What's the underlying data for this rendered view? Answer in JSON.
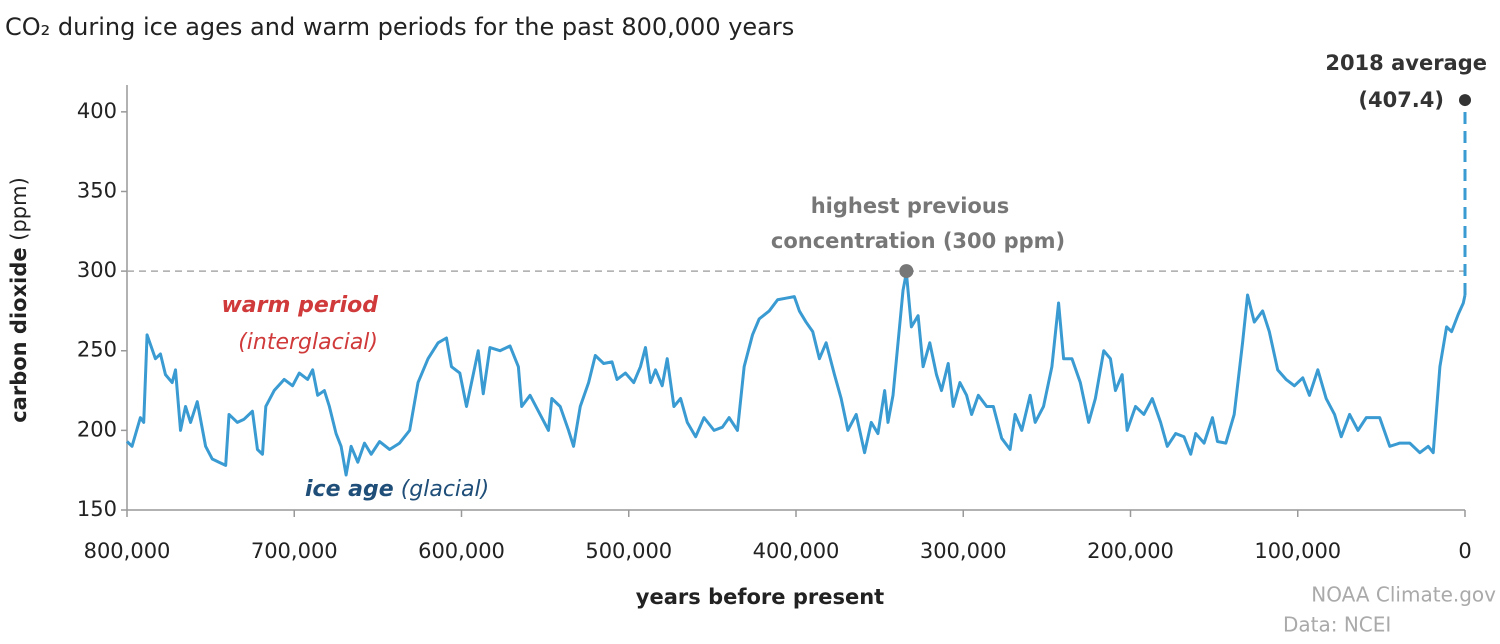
{
  "chart_data": {
    "type": "line",
    "title": "CO₂ during ice ages and warm periods for the past 800,000 years",
    "xlabel": "years before present",
    "ylabel": "carbon dioxide",
    "ylabel_unit": "(ppm)",
    "color": "#3a9bd2",
    "xlim": [
      800000,
      0
    ],
    "ylim": [
      150,
      420
    ],
    "xticks": [
      {
        "value": 800000,
        "label": "800,000"
      },
      {
        "value": 700000,
        "label": "700,000"
      },
      {
        "value": 600000,
        "label": "600,000"
      },
      {
        "value": 500000,
        "label": "500,000"
      },
      {
        "value": 400000,
        "label": "400,000"
      },
      {
        "value": 300000,
        "label": "300,000"
      },
      {
        "value": 200000,
        "label": "200,000"
      },
      {
        "value": 100000,
        "label": "100,000"
      },
      0
    ],
    "yticks": [
      150,
      200,
      250,
      300,
      350,
      400
    ],
    "reference_line": 300,
    "x": [
      800000,
      797000,
      792000,
      790000,
      788000,
      783000,
      780000,
      777000,
      773000,
      771000,
      768000,
      765000,
      762000,
      758000,
      753000,
      749000,
      745000,
      741000,
      739000,
      734000,
      730000,
      725000,
      722000,
      719000,
      717000,
      712000,
      706000,
      701000,
      697000,
      692000,
      689000,
      686000,
      682000,
      679000,
      675000,
      672000,
      669000,
      666000,
      662000,
      658000,
      654000,
      649000,
      643000,
      637000,
      631000,
      626000,
      620000,
      614000,
      609000,
      606000,
      601000,
      597000,
      594000,
      590000,
      587000,
      583000,
      577000,
      571000,
      566000,
      564000,
      559000,
      553000,
      548000,
      546000,
      541000,
      536000,
      533000,
      529000,
      524000,
      520000,
      515000,
      510000,
      507000,
      502000,
      497000,
      493000,
      490000,
      487000,
      484000,
      480000,
      477000,
      473000,
      469000,
      465000,
      460000,
      455000,
      449000,
      444000,
      440000,
      435000,
      431000,
      426000,
      422000,
      416000,
      411000,
      406000,
      401000,
      398000,
      394000,
      390000,
      386000,
      382000,
      377000,
      373000,
      369000,
      364000,
      359000,
      355000,
      351000,
      347000,
      345000,
      342000,
      339000,
      336000,
      334000,
      331000,
      327000,
      324000,
      320000,
      316000,
      313000,
      309000,
      306000,
      302000,
      298000,
      295000,
      291000,
      286000,
      282000,
      277000,
      272000,
      269000,
      265000,
      260000,
      257000,
      252000,
      247000,
      243000,
      240000,
      235000,
      230000,
      225000,
      221000,
      216000,
      212000,
      209000,
      205000,
      202000,
      197000,
      192000,
      187000,
      182000,
      178000,
      173000,
      168000,
      164000,
      161000,
      156000,
      151000,
      148000,
      143000,
      138000,
      133000,
      130000,
      126000,
      121000,
      117000,
      112000,
      107000,
      102000,
      97000,
      93000,
      88000,
      83000,
      78000,
      74000,
      69000,
      64000,
      59000,
      51000,
      45000,
      39000,
      33000,
      27000,
      22000,
      19000,
      15000,
      11000,
      8000,
      4000,
      1000,
      0
    ],
    "values": [
      193,
      190,
      208,
      205,
      260,
      245,
      248,
      235,
      230,
      238,
      200,
      215,
      205,
      218,
      190,
      182,
      180,
      178,
      210,
      205,
      207,
      212,
      188,
      185,
      215,
      225,
      232,
      228,
      236,
      232,
      238,
      222,
      225,
      215,
      198,
      190,
      172,
      190,
      180,
      192,
      185,
      193,
      188,
      192,
      200,
      230,
      245,
      255,
      258,
      240,
      236,
      215,
      230,
      250,
      223,
      252,
      250,
      253,
      240,
      215,
      222,
      210,
      200,
      220,
      215,
      200,
      190,
      215,
      230,
      247,
      242,
      243,
      232,
      236,
      230,
      240,
      252,
      230,
      238,
      228,
      245,
      215,
      220,
      205,
      196,
      208,
      200,
      202,
      208,
      200,
      240,
      260,
      270,
      275,
      282,
      283,
      284,
      275,
      268,
      262,
      245,
      255,
      235,
      220,
      200,
      210,
      186,
      205,
      198,
      225,
      205,
      222,
      255,
      288,
      299,
      265,
      272,
      240,
      255,
      235,
      225,
      242,
      215,
      230,
      222,
      210,
      222,
      215,
      215,
      195,
      188,
      210,
      200,
      222,
      205,
      215,
      240,
      280,
      245,
      245,
      230,
      205,
      220,
      250,
      245,
      225,
      235,
      200,
      215,
      210,
      220,
      205,
      190,
      198,
      196,
      185,
      198,
      192,
      208,
      193,
      192,
      210,
      255,
      285,
      268,
      275,
      262,
      238,
      232,
      228,
      233,
      222,
      238,
      220,
      210,
      196,
      210,
      200,
      208,
      208,
      190,
      192,
      192,
      186,
      190,
      186,
      240,
      265,
      262,
      273,
      280,
      285
    ],
    "annotations": [
      {
        "text": "2018 average",
        "x": 0,
        "value": 407.4,
        "value_label": "(407.4)"
      },
      {
        "text": [
          "highest previous",
          "concentration (300 ppm)"
        ],
        "x": 334000,
        "value": 300
      }
    ],
    "labels": {
      "warm": "warm period",
      "warm_sub": "(interglacial)",
      "ice": "ice age",
      "ice_sub": "(glacial)"
    },
    "credits": [
      "NOAA Climate.gov",
      "Data: NCEI"
    ]
  }
}
